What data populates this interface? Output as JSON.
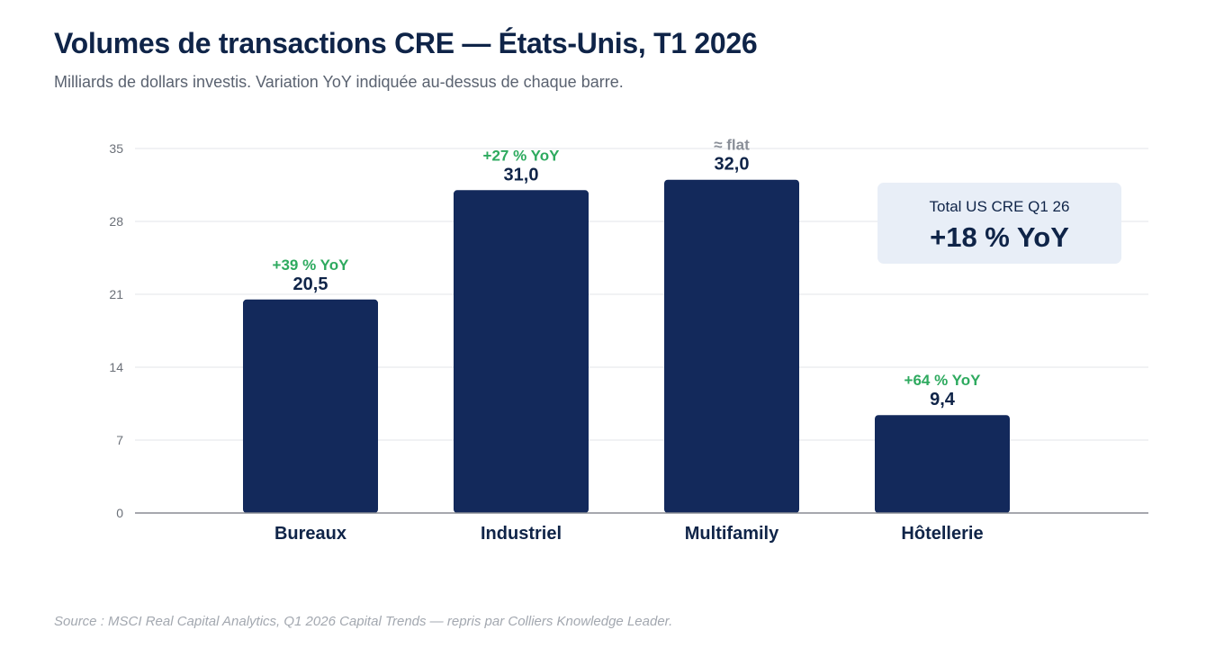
{
  "header": {
    "title": "Volumes de transactions CRE — États-Unis, T1 2026",
    "subtitle": "Milliards de dollars investis. Variation YoY indiquée au-dessus de chaque barre."
  },
  "callout": {
    "label": "Total US CRE Q1 26",
    "value": "+18 % YoY"
  },
  "footer": {
    "source": "Source : MSCI Real Capital Analytics, Q1 2026 Capital Trends — repris par Colliers Knowledge Leader."
  },
  "colors": {
    "bar": "#13295b",
    "positive_change": "#2eaa5f",
    "neutral_change": "#8a8f98",
    "value_label": "#0f2448",
    "grid": "#e3e5e9",
    "axis": "#888c93",
    "tick": "#6b7078"
  },
  "chart_data": {
    "type": "bar",
    "categories": [
      "Bureaux",
      "Industriel",
      "Multifamily",
      "Hôtellerie"
    ],
    "values": [
      20.5,
      31.0,
      32.0,
      9.4
    ],
    "value_labels": [
      "20,5",
      "31,0",
      "32,0",
      "9,4"
    ],
    "yoy_labels": [
      "+39 % YoY",
      "+27 % YoY",
      "≈ flat",
      "+64 % YoY"
    ],
    "yoy_kind": [
      "positive",
      "positive",
      "neutral",
      "positive"
    ],
    "yticks": [
      0,
      7,
      14,
      21,
      28,
      35
    ],
    "ylim": [
      0,
      35
    ],
    "grid": true,
    "legend": "none"
  }
}
